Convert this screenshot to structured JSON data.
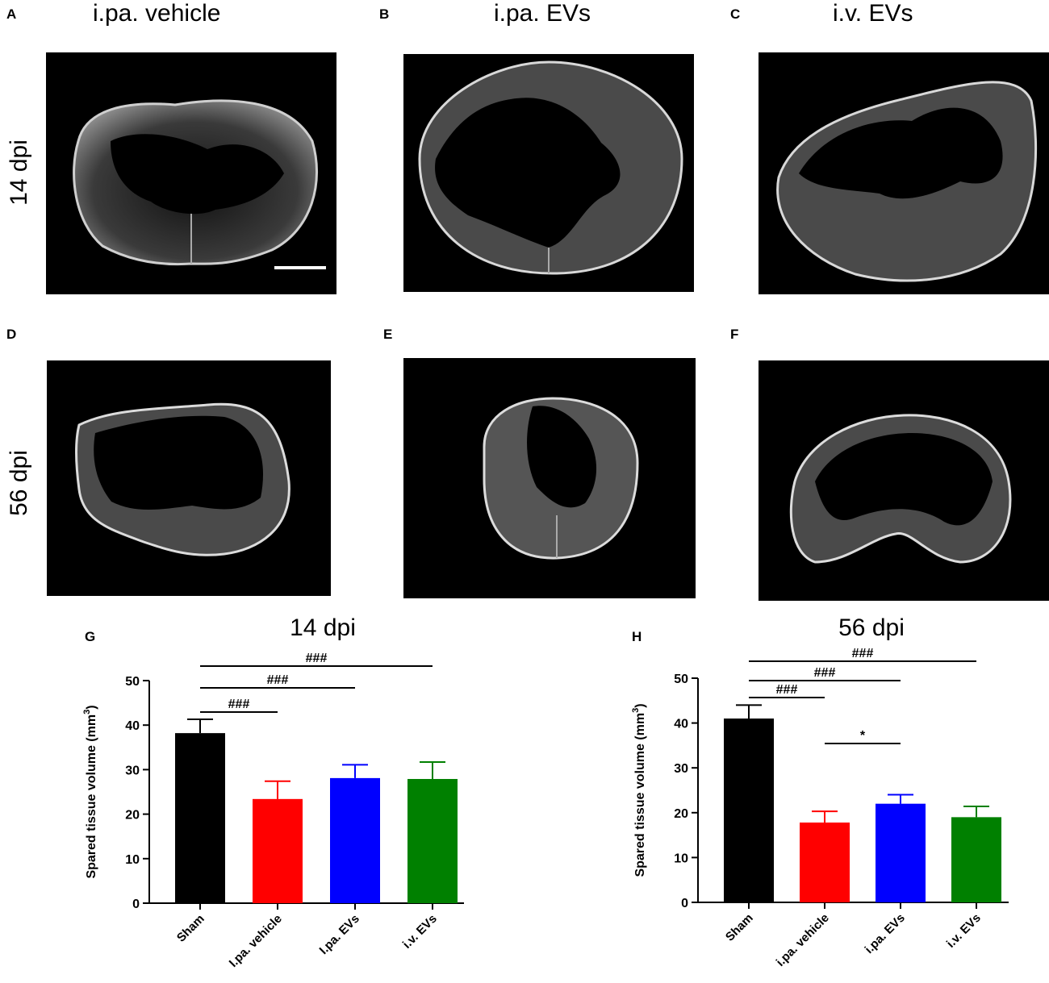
{
  "columns": [
    "i.pa. vehicle",
    "i.pa. EVs",
    "i.v. EVs"
  ],
  "rows": [
    "14 dpi",
    "56 dpi"
  ],
  "panels": [
    "A",
    "B",
    "C",
    "D",
    "E",
    "F",
    "G",
    "H"
  ],
  "colors": {
    "sham": "#000000",
    "ipa_vehicle": "#ff0000",
    "ipa_evs": "#0000ff",
    "iv_evs": "#008000"
  },
  "chart_data": [
    {
      "type": "bar",
      "panel": "G",
      "title": "14 dpi",
      "ylabel": "Spared tissue volume  (mm3)",
      "ylabel_main": "Spared tissue volume  (mm",
      "ylabel_sup": "3",
      "ylabel_end": ")",
      "ylim": [
        0,
        50
      ],
      "yticks": [
        "0",
        "10",
        "20",
        "30",
        "40",
        "50"
      ],
      "categories": [
        "Sham",
        "I.pa. vehicle",
        "I.pa. EVs",
        "i.v. EVs"
      ],
      "values": [
        38.2,
        23.4,
        28.1,
        27.9
      ],
      "errors": [
        3.1,
        4.0,
        3.0,
        3.8
      ],
      "bar_colors": [
        "#000000",
        "#ff0000",
        "#0000ff",
        "#008000"
      ],
      "significance": [
        {
          "from": 0,
          "to": 1,
          "label": "###"
        },
        {
          "from": 0,
          "to": 2,
          "label": "###"
        },
        {
          "from": 0,
          "to": 3,
          "label": "###"
        }
      ]
    },
    {
      "type": "bar",
      "panel": "H",
      "title": "56 dpi",
      "ylabel": "Spared tissue volume  (mm3)",
      "ylabel_main": "Spared tissue volume  (mm",
      "ylabel_sup": "3",
      "ylabel_end": ")",
      "ylim": [
        0,
        50
      ],
      "yticks": [
        "0",
        "10",
        "20",
        "30",
        "40",
        "50"
      ],
      "categories": [
        "Sham",
        "i.pa. vehicle",
        "i.pa. EVs",
        "i.v. EVs"
      ],
      "values": [
        41.0,
        17.8,
        22.0,
        19.0
      ],
      "errors": [
        3.0,
        2.5,
        2.0,
        2.4
      ],
      "bar_colors": [
        "#000000",
        "#ff0000",
        "#0000ff",
        "#008000"
      ],
      "significance": [
        {
          "from": 0,
          "to": 1,
          "label": "###"
        },
        {
          "from": 0,
          "to": 2,
          "label": "###"
        },
        {
          "from": 0,
          "to": 3,
          "label": "###"
        },
        {
          "from": 1,
          "to": 2,
          "label": "*"
        }
      ]
    }
  ]
}
